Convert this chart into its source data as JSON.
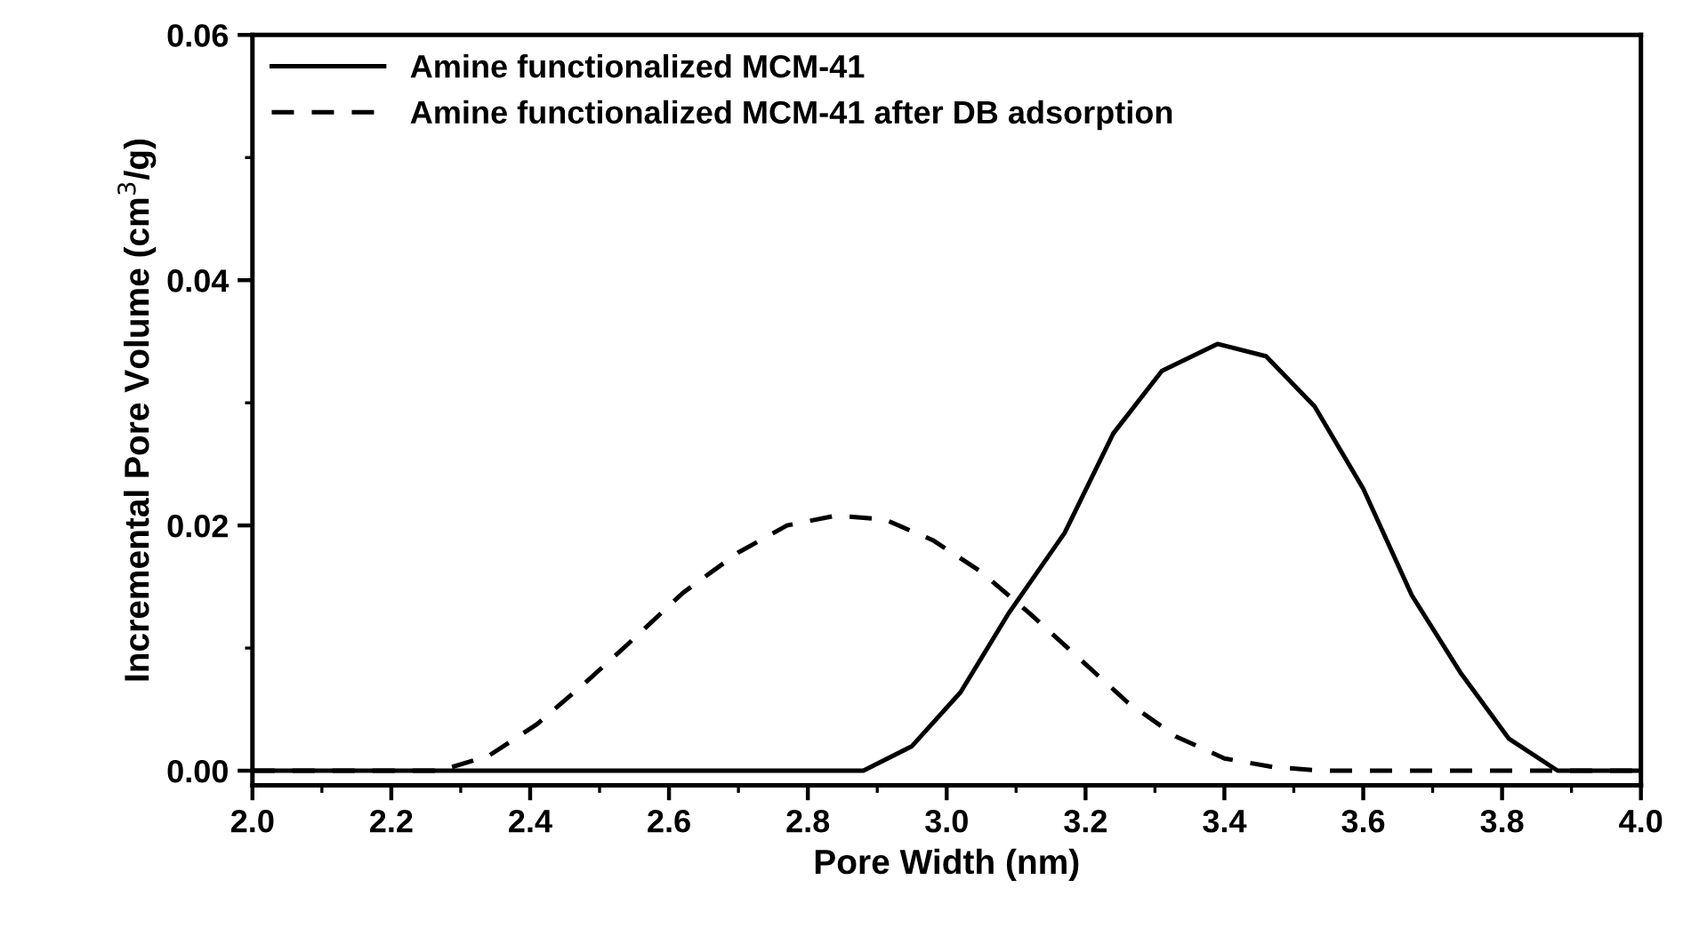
{
  "chart_data": {
    "type": "line",
    "xlabel": "Pore Width (nm)",
    "ylabel": "Incremental Pore Volume (cm$^{3}$/g)",
    "xlim": [
      2.0,
      4.0
    ],
    "ylim": [
      -0.0012,
      0.06
    ],
    "xticks": [
      {
        "value": 2.0,
        "label": "2.0"
      },
      {
        "value": 2.2,
        "label": "2.2"
      },
      {
        "value": 2.4,
        "label": "2.4"
      },
      {
        "value": 2.6,
        "label": "2.6"
      },
      {
        "value": 2.8,
        "label": "2.8"
      },
      {
        "value": 3.0,
        "label": "3.0"
      },
      {
        "value": 3.2,
        "label": "3.2"
      },
      {
        "value": 3.4,
        "label": "3.4"
      },
      {
        "value": 3.6,
        "label": "3.6"
      },
      {
        "value": 3.8,
        "label": "3.8"
      },
      {
        "value": 4.0,
        "label": "4.0"
      }
    ],
    "yticks": [
      {
        "value": 0,
        "label": "0.00"
      },
      {
        "value": 0.02,
        "label": "0.02"
      },
      {
        "value": 0.04,
        "label": "0.04"
      },
      {
        "value": 0.06,
        "label": "0.06"
      }
    ],
    "legend": "top left",
    "grid": false,
    "marker": "none",
    "series": [
      {
        "name": "Amine functionalized MCM-41",
        "color": "#000000",
        "line_style": "solid",
        "x": [
          2.0,
          2.88,
          2.95,
          3.02,
          3.09,
          3.17,
          3.24,
          3.31,
          3.39,
          3.46,
          3.53,
          3.6,
          3.67,
          3.74,
          3.81,
          3.88,
          4.0
        ],
        "values": [
          0,
          0,
          0.002,
          0.0064,
          0.0129,
          0.0194,
          0.0275,
          0.0326,
          0.0348,
          0.0338,
          0.0297,
          0.023,
          0.0143,
          0.008,
          0.0026,
          0,
          0
        ]
      },
      {
        "name": "Amine functionalized MCM-41 after DB adsorption",
        "color": "#000000",
        "line_style": "dashed",
        "x": [
          2.0,
          2.27,
          2.34,
          2.41,
          2.48,
          2.55,
          2.62,
          2.7,
          2.77,
          2.84,
          2.91,
          2.98,
          3.05,
          3.12,
          3.19,
          3.26,
          3.33,
          3.4,
          3.47,
          3.54,
          4.0
        ],
        "values": [
          0,
          0,
          0.0012,
          0.0038,
          0.0072,
          0.0108,
          0.0145,
          0.0178,
          0.02,
          0.0208,
          0.0205,
          0.0188,
          0.0162,
          0.0128,
          0.0092,
          0.0056,
          0.0028,
          0.001,
          0.0003,
          0,
          0
        ]
      }
    ]
  }
}
